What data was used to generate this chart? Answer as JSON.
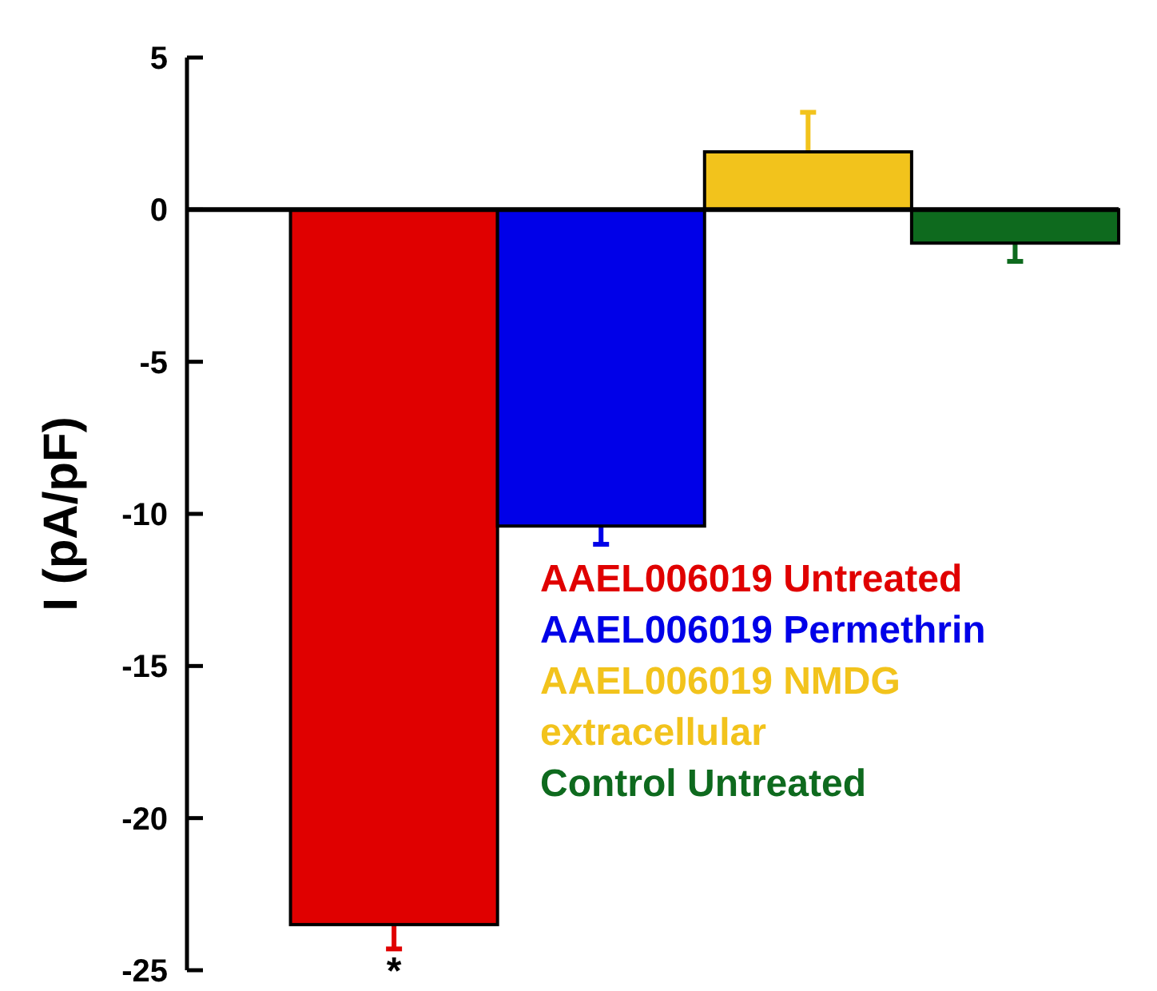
{
  "chart_data": {
    "type": "bar",
    "ylabel": "I (pA/pF)",
    "categories": [
      null,
      null,
      null,
      null
    ],
    "series": [
      {
        "name": "AAEL006019 Untreated",
        "color": "#e00000",
        "values": [
          -23.5,
          null,
          null,
          null
        ],
        "errors": [
          [
            -24.3,
            -23.5
          ],
          null,
          null,
          null
        ]
      },
      {
        "name": "AAEL006019 Permethrin",
        "color": "#0000e8",
        "values": [
          null,
          -10.4,
          null,
          null
        ],
        "errors": [
          null,
          [
            -11.0,
            -10.4
          ],
          null,
          null
        ]
      },
      {
        "name": "AAEL006019 NMDG extracellular",
        "color": "#f2c31c",
        "values": [
          null,
          null,
          1.9,
          null
        ],
        "errors": [
          null,
          null,
          [
            1.9,
            3.2
          ],
          null
        ]
      },
      {
        "name": "Control Untreated",
        "color": "#0e6a1e",
        "values": [
          null,
          null,
          null,
          -1.1
        ],
        "errors": [
          null,
          null,
          null,
          [
            -1.7,
            -1.1
          ]
        ]
      }
    ],
    "ylim": [
      -25,
      5
    ],
    "yticks": [
      -25,
      -20,
      -15,
      -10,
      -5,
      0,
      5
    ],
    "legend": "bottom right",
    "annotations": [
      "*"
    ]
  }
}
